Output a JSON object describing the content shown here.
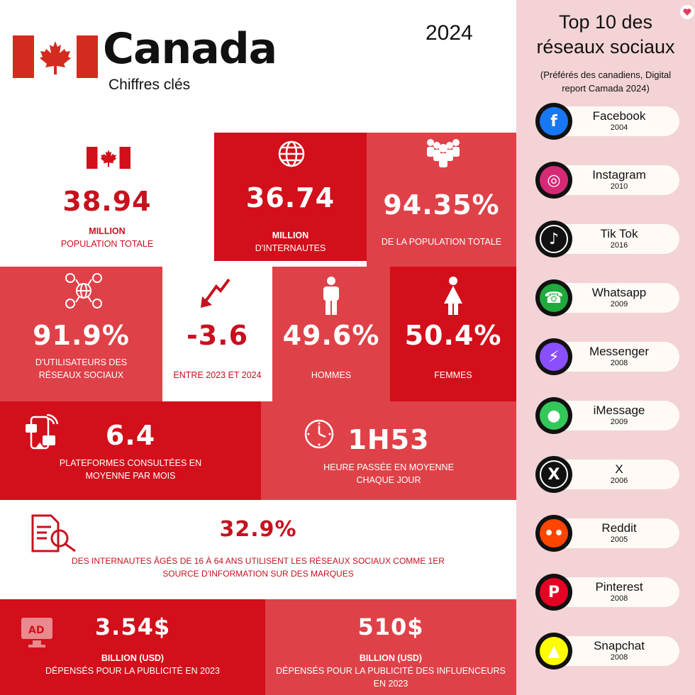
{
  "header": {
    "country": "Canada",
    "subtitle": "Chiffres clés",
    "year": "2024"
  },
  "stats": {
    "population": {
      "value": "38.94",
      "unit": "MILLION",
      "label": "POPULATION TOTALE"
    },
    "internautes": {
      "value": "36.74",
      "unit": "MILLION",
      "label": "D'INTERNAUTES"
    },
    "internet_share": {
      "value": "94.35%",
      "label": "DE LA POPULATION TOTALE"
    },
    "social_users": {
      "value": "91.9%",
      "label": "D'UTILISATEURS DES RÉSEAUX SOCIAUX"
    },
    "change": {
      "value": "-3.6",
      "label": "ENTRE 2023 ET 2024"
    },
    "men": {
      "value": "49.6%",
      "label": "HOMMES"
    },
    "women": {
      "value": "50.4%",
      "label": "FEMMES"
    },
    "platforms": {
      "value": "6.4",
      "label": "PLATEFORMES CONSULTÉES EN MOYENNE PAR MOIS"
    },
    "time": {
      "value": "1H53",
      "label": "HEURE PASSÉE EN MOYENNE CHAQUE JOUR"
    },
    "brand_source": {
      "value": "32.9%",
      "label": "DES INTERNAUTES ÂGÉS DE 16 À 64 ANS UTILISENT LES RÉSEAUX SOCIAUX COMME 1ER SOURCE D'INFORMATION SUR DES MARQUES"
    },
    "ad_spend": {
      "value": "3.54$",
      "unit": "BILLION (USD)",
      "label": "DÉPENSÉS POUR LA PUBLICITÉ EN 2023"
    },
    "influencer_spend": {
      "value": "510$",
      "unit": "BILLION (USD)",
      "label": "DÉPENSÉS POUR LA PUBLICITÉ DES INFLUENCEURS EN 2023"
    }
  },
  "sidebar": {
    "title_line1": "Top 10 des",
    "title_line2": "réseaux sociaux",
    "subtitle": "(Préférés des canadiens, Digital report Camada 2024)",
    "networks": [
      {
        "name": "Facebook",
        "year": "2004",
        "icon": "facebook-icon",
        "color": "#1877f2"
      },
      {
        "name": "Instagram",
        "year": "2010",
        "icon": "instagram-icon",
        "color": "#d62976"
      },
      {
        "name": "Tik Tok",
        "year": "2016",
        "icon": "tiktok-icon",
        "color": "#111111"
      },
      {
        "name": "Whatsapp",
        "year": "2009",
        "icon": "whatsapp-icon",
        "color": "#1faa3b"
      },
      {
        "name": "Messenger",
        "year": "2008",
        "icon": "messenger-icon",
        "color": "#8a4fff"
      },
      {
        "name": "iMessage",
        "year": "2009",
        "icon": "imessage-icon",
        "color": "#34c759"
      },
      {
        "name": "X",
        "year": "2006",
        "icon": "x-icon",
        "color": "#111111"
      },
      {
        "name": "Reddit",
        "year": "2005",
        "icon": "reddit-icon",
        "color": "#ff4500"
      },
      {
        "name": "Pinterest",
        "year": "2008",
        "icon": "pinterest-icon",
        "color": "#e60023"
      },
      {
        "name": "Snapchat",
        "year": "2008",
        "icon": "snapchat-icon",
        "color": "#fffc00"
      }
    ]
  },
  "colors": {
    "dark_red": "#d20f1a",
    "mid_red": "#df4148",
    "sidebar_bg": "#f3d3d5"
  }
}
